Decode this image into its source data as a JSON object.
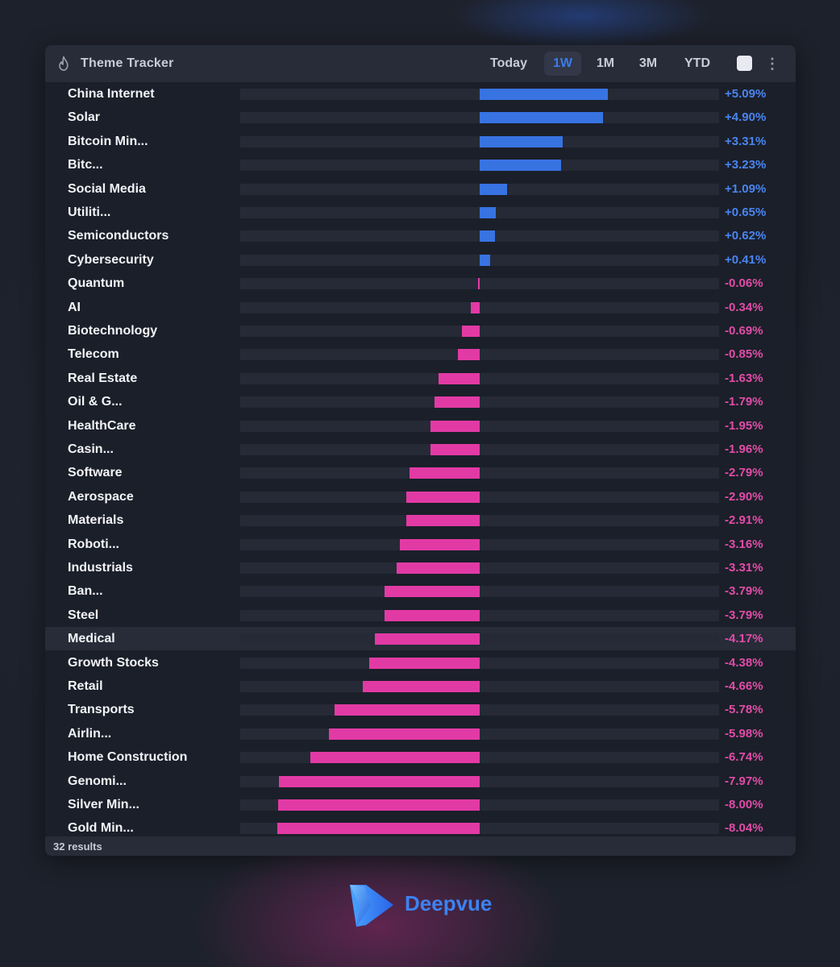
{
  "app": {
    "title": "Theme Tracker",
    "results": "32 results",
    "brand": "Deepvue"
  },
  "icons": {
    "header": "fire-icon",
    "menu": "more-vertical-icon",
    "brand": "deepvue-logo-icon"
  },
  "colors": {
    "positive": "#3873e2",
    "negative": "#e23aa5",
    "accent": "#3e7bea",
    "swatch": "#e9e9f2"
  },
  "tabs": [
    {
      "label": "Today",
      "active": false
    },
    {
      "label": "1W",
      "active": true
    },
    {
      "label": "1M",
      "active": false
    },
    {
      "label": "3M",
      "active": false
    },
    {
      "label": "YTD",
      "active": false
    }
  ],
  "highlighted_row": 23,
  "chart_data": {
    "type": "bar",
    "orientation": "horizontal",
    "xlim": [
      -8.04,
      8.04
    ],
    "categories": [
      "China Internet",
      "Solar",
      "Bitcoin Min...",
      "Bitc...",
      "Social Media",
      "Utiliti...",
      "Semiconductors",
      "Cybersecurity",
      "Quantum",
      "AI",
      "Biotechnology",
      "Telecom",
      "Real Estate",
      "Oil & G...",
      "HealthCare",
      "Casin...",
      "Software",
      "Aerospace",
      "Materials",
      "Roboti...",
      "Industrials",
      "Ban...",
      "Steel",
      "Medical",
      "Growth Stocks",
      "Retail",
      "Transports",
      "Airlin...",
      "Home Construction",
      "Genomi...",
      "Silver Min...",
      "Gold Min..."
    ],
    "values": [
      5.09,
      4.9,
      3.31,
      3.23,
      1.09,
      0.65,
      0.62,
      0.41,
      -0.06,
      -0.34,
      -0.69,
      -0.85,
      -1.63,
      -1.79,
      -1.95,
      -1.96,
      -2.79,
      -2.9,
      -2.91,
      -3.16,
      -3.31,
      -3.79,
      -3.79,
      -4.17,
      -4.38,
      -4.66,
      -5.78,
      -5.98,
      -6.74,
      -7.97,
      -8.0,
      -8.04
    ],
    "labels": [
      "+5.09%",
      "+4.90%",
      "+3.31%",
      "+3.23%",
      "+1.09%",
      "+0.65%",
      "+0.62%",
      "+0.41%",
      "-0.06%",
      "-0.34%",
      "-0.69%",
      "-0.85%",
      "-1.63%",
      "-1.79%",
      "-1.95%",
      "-1.96%",
      "-2.79%",
      "-2.90%",
      "-2.91%",
      "-3.16%",
      "-3.31%",
      "-3.79%",
      "-3.79%",
      "-4.17%",
      "-4.38%",
      "-4.66%",
      "-5.78%",
      "-5.98%",
      "-6.74%",
      "-7.97%",
      "-8.00%",
      "-8.04%"
    ]
  }
}
